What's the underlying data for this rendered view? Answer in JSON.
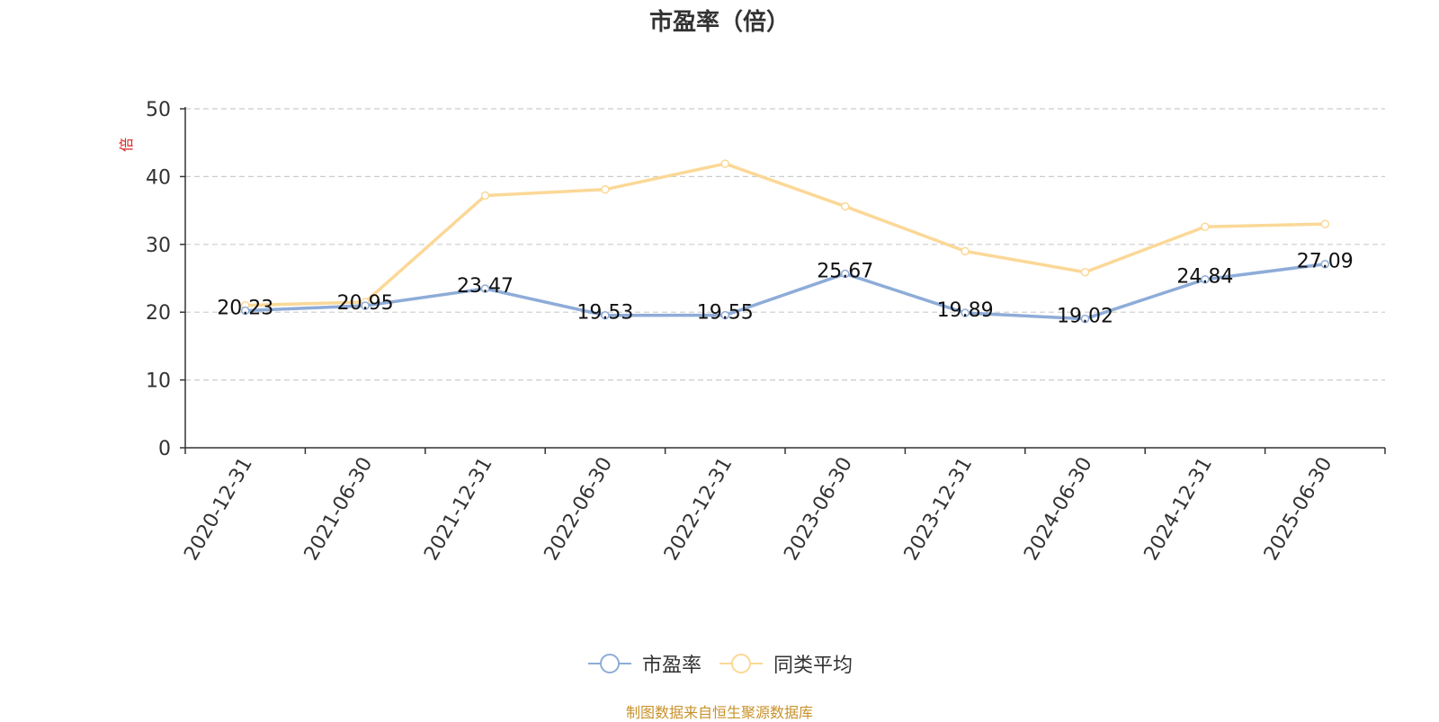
{
  "chart_data": {
    "type": "line",
    "title": "市盈率（倍）",
    "ylabel": "倍",
    "ylim": [
      0,
      50
    ],
    "yticks": [
      0,
      10,
      20,
      30,
      40,
      50
    ],
    "grid": true,
    "legend_position": "bottom",
    "categories": [
      "2020-12-31",
      "2021-06-30",
      "2021-12-31",
      "2022-06-30",
      "2022-12-31",
      "2023-06-30",
      "2023-12-31",
      "2024-06-30",
      "2024-12-31",
      "2025-06-30"
    ],
    "series": [
      {
        "name": "市盈率",
        "color": "#8eacd8",
        "show_labels": true,
        "values": [
          20.23,
          20.95,
          23.47,
          19.53,
          19.55,
          25.67,
          19.89,
          19.02,
          24.84,
          27.09
        ]
      },
      {
        "name": "同类平均",
        "color": "#fbd897",
        "show_labels": false,
        "values": [
          21.0,
          21.5,
          37.2,
          38.1,
          41.9,
          35.6,
          29.0,
          25.9,
          32.6,
          33.0
        ]
      }
    ]
  },
  "source": "制图数据来自恒生聚源数据库"
}
